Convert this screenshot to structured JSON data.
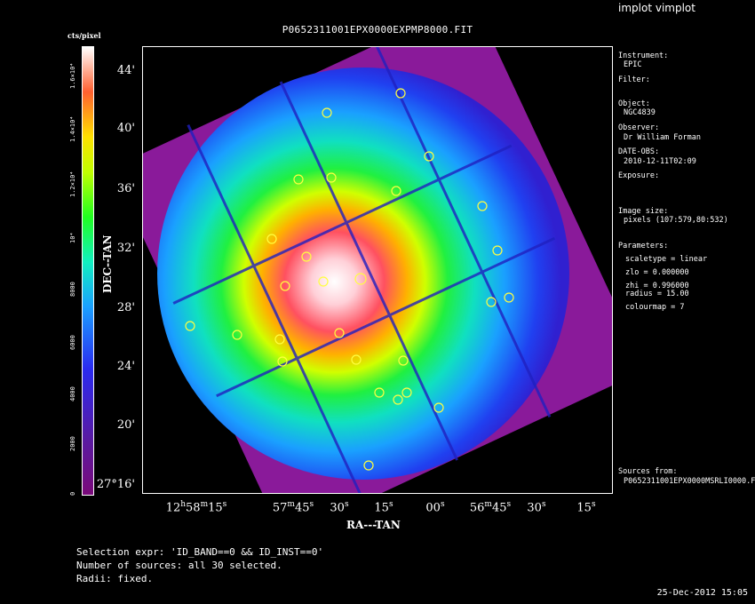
{
  "window": {
    "app_title": "implot vimplot"
  },
  "plot": {
    "title": "P0652311001EPX0000EXPMP8000.FIT",
    "x_axis_label": "RA---TAN",
    "y_axis_label": "DEC--TAN",
    "y_ticks": [
      "44'",
      "40'",
      "36'",
      "32'",
      "28'",
      "24'",
      "20'",
      "27°16'"
    ],
    "x_ticks": [
      {
        "main": "12",
        "s1": "h",
        "m": "58",
        "s2": "m",
        "sec": "15",
        "s3": "s"
      },
      {
        "main": "57",
        "s1": "m",
        "m": "45",
        "s2": "s",
        "sec": "",
        "s3": ""
      },
      {
        "main": "30",
        "s1": "s",
        "m": "",
        "s2": "",
        "sec": "",
        "s3": ""
      },
      {
        "main": "15",
        "s1": "s",
        "m": "",
        "s2": "",
        "sec": "",
        "s3": ""
      },
      {
        "main": "00",
        "s1": "s",
        "m": "",
        "s2": "",
        "sec": "",
        "s3": ""
      },
      {
        "main": "56",
        "s1": "m",
        "m": "45",
        "s2": "s",
        "sec": "",
        "s3": ""
      },
      {
        "main": "30",
        "s1": "s",
        "m": "",
        "s2": "",
        "sec": "",
        "s3": ""
      },
      {
        "main": "15",
        "s1": "s",
        "m": "",
        "s2": "",
        "sec": "",
        "s3": ""
      }
    ],
    "source_count": 30
  },
  "colorbar": {
    "label": "cts/pixel",
    "ticks": [
      "1.6×10⁴",
      "1.4×10⁴",
      "1.2×10⁴",
      "10⁴",
      "8000",
      "6000",
      "4000",
      "2000",
      "0"
    ],
    "scale": "linear",
    "colors": [
      "#7a0a7a",
      "#2a2af0",
      "#10f0c0",
      "#20ff20",
      "#ffe000",
      "#ff6030",
      "#ffffff"
    ]
  },
  "side_panel": {
    "instrument_label": "Instrument:",
    "instrument_value": "EPIC",
    "filter_label": "Filter:",
    "object_label": "Object:",
    "object_value": "NGC4839",
    "observer_label": "Observer:",
    "observer_value": "Dr William Forman",
    "date_label": "DATE-OBS:",
    "date_value": "2010-12-11T02:09",
    "exposure_label": "Exposure:",
    "image_size_label": "Image size:",
    "image_size_value": "pixels (107:579,80:532)",
    "parameters_label": "Parameters:",
    "param_scaletype": "scaletype = linear",
    "param_zlo": "zlo = 0.000000",
    "param_zhi": "zhi = 0.996000",
    "param_radius": "radius = 15.00",
    "param_colourmap": "colourmap = 7",
    "sources_label": "Sources from:",
    "sources_value": "P0652311001EPX0000MSRLI0000.F"
  },
  "footer": {
    "selection": "Selection expr: 'ID_BAND==0 && ID_INST==0'",
    "num_sources": "Number of sources: all 30 selected.",
    "radii": "Radii: fixed.",
    "timestamp": "25-Dec-2012 15:05"
  }
}
